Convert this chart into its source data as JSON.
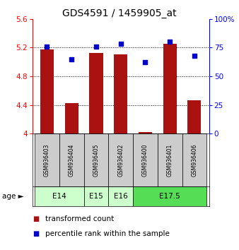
{
  "title": "GDS4591 / 1459905_at",
  "samples": [
    "GSM936403",
    "GSM936404",
    "GSM936405",
    "GSM936402",
    "GSM936400",
    "GSM936401",
    "GSM936406"
  ],
  "transformed_counts": [
    5.17,
    4.43,
    5.12,
    5.1,
    4.02,
    5.25,
    4.47
  ],
  "percentile_ranks": [
    76,
    65,
    76,
    78,
    62,
    80,
    68
  ],
  "ylim_left": [
    4.0,
    5.6
  ],
  "ylim_right": [
    0,
    100
  ],
  "yticks_left": [
    4.0,
    4.4,
    4.8,
    5.2,
    5.6
  ],
  "yticks_right": [
    0,
    25,
    50,
    75,
    100
  ],
  "ytick_labels_left": [
    "4",
    "4.4",
    "4.8",
    "5.2",
    "5.6"
  ],
  "ytick_labels_right": [
    "0",
    "25",
    "50",
    "75",
    "100%"
  ],
  "age_groups": [
    {
      "label": "E14",
      "samples": [
        "GSM936403",
        "GSM936404"
      ],
      "color": "#ccffcc"
    },
    {
      "label": "E15",
      "samples": [
        "GSM936405"
      ],
      "color": "#ccffcc"
    },
    {
      "label": "E16",
      "samples": [
        "GSM936402"
      ],
      "color": "#ccffcc"
    },
    {
      "label": "E17.5",
      "samples": [
        "GSM936400",
        "GSM936401",
        "GSM936406"
      ],
      "color": "#55dd55"
    }
  ],
  "bar_color": "#aa1111",
  "dot_color": "#0000cc",
  "bar_bottom": 4.0,
  "grid_color": "#000000",
  "bg_color": "#ffffff",
  "sample_box_color": "#cccccc",
  "title_fontsize": 10,
  "axis_fontsize": 7.5,
  "legend_fontsize": 7.5
}
